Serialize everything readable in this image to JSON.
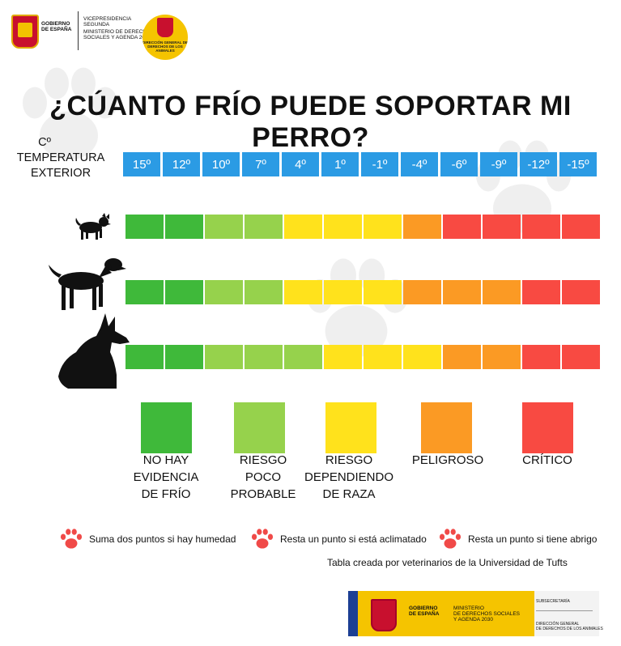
{
  "header": {
    "gov_logo_text": "GOBIERNO\nDE ESPAÑA",
    "vicepresidencia": "VICEPRESIDENCIA SEGUNDA",
    "ministerio": "MINISTERIO DE DERECHOS SOCIALES Y AGENDA 2030",
    "dg_text": "DIRECCIÓN GENERAL DE DERECHOS DE LOS ANIMALES"
  },
  "title": "¿CÚANTO FRÍO PUEDE SOPORTAR MI PERRO?",
  "temperature_label": {
    "unit": "Cº",
    "line1": "TEMPERATURA",
    "line2": "EXTERIOR"
  },
  "temperatures": [
    "15º",
    "12º",
    "10º",
    "7º",
    "4º",
    "1º",
    "-1º",
    "-4º",
    "-6º",
    "-9º",
    "-12º",
    "-15º"
  ],
  "colors": {
    "none": "#3fb93a",
    "unlikely": "#96d24c",
    "breed": "#ffe21c",
    "danger": "#fb9a24",
    "critical": "#f84a42",
    "temp_bg": "#2b9be4"
  },
  "risk_rows": [
    {
      "dog": "small-dog",
      "levels": [
        "none",
        "none",
        "unlikely",
        "unlikely",
        "breed",
        "breed",
        "breed",
        "danger",
        "critical",
        "critical",
        "critical",
        "critical"
      ]
    },
    {
      "dog": "medium-dog",
      "levels": [
        "none",
        "none",
        "unlikely",
        "unlikely",
        "breed",
        "breed",
        "breed",
        "danger",
        "danger",
        "danger",
        "critical",
        "critical"
      ]
    },
    {
      "dog": "large-dog",
      "levels": [
        "none",
        "none",
        "unlikely",
        "unlikely",
        "unlikely",
        "breed",
        "breed",
        "breed",
        "danger",
        "danger",
        "critical",
        "critical"
      ]
    }
  ],
  "legend": [
    {
      "key": "none",
      "label": "NO HAY\nEVIDENCIA\nDE FRÍO"
    },
    {
      "key": "unlikely",
      "label": "RIESGO\nPOCO\nPROBABLE"
    },
    {
      "key": "breed",
      "label": "RIESGO\nDEPENDIENDO\nDE RAZA"
    },
    {
      "key": "danger",
      "label": "PELIGROSO"
    },
    {
      "key": "critical",
      "label": "CRÍTICO"
    }
  ],
  "notes": [
    "Suma dos puntos si hay humedad",
    "Resta un punto si está aclimatado",
    "Resta un punto si tiene abrigo"
  ],
  "credit": "Tabla creada por veterinarios de la Universidad de Tufts",
  "footer": {
    "gobierno": "GOBIERNO\nDE ESPAÑA",
    "ministerio": "MINISTERIO\nDE DERECHOS SOCIALES\nY AGENDA 2030",
    "subsecretaria": "SUBSECRETARÍA",
    "direccion": "DIRECCIÓN GENERAL\nDE DERECHOS DE LOS ANIMALES"
  }
}
